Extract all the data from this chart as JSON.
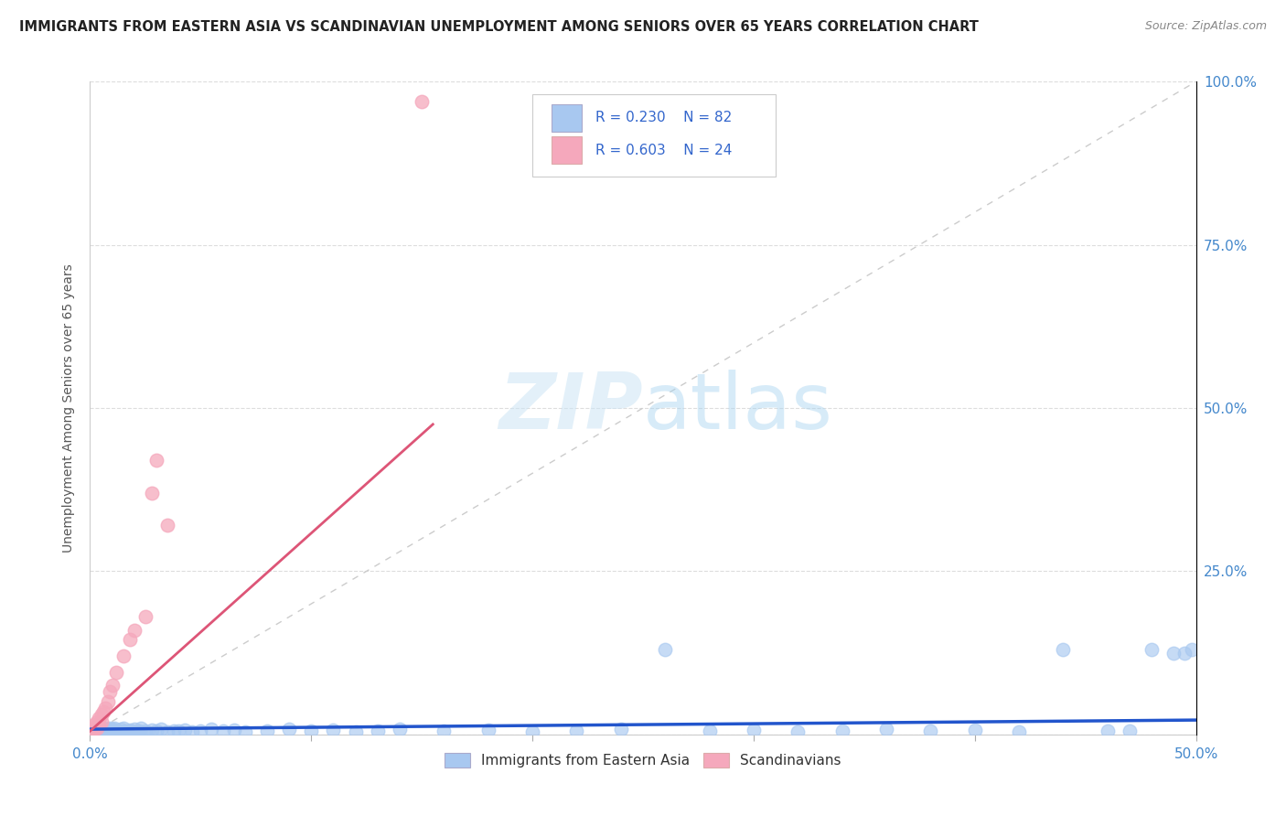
{
  "title": "IMMIGRANTS FROM EASTERN ASIA VS SCANDINAVIAN UNEMPLOYMENT AMONG SENIORS OVER 65 YEARS CORRELATION CHART",
  "source": "Source: ZipAtlas.com",
  "legend_label1": "Immigrants from Eastern Asia",
  "legend_label2": "Scandinavians",
  "legend_r1": "R = 0.230",
  "legend_n1": "N = 82",
  "legend_r2": "R = 0.603",
  "legend_n2": "N = 24",
  "ylabel_label": "Unemployment Among Seniors over 65 years",
  "blue_color": "#a8c8f0",
  "pink_color": "#f5a8bc",
  "blue_line_color": "#2255cc",
  "pink_line_color": "#dd5577",
  "ref_line_color": "#cccccc",
  "background_color": "#ffffff",
  "xlim": [
    0,
    0.5
  ],
  "ylim": [
    0,
    1.0
  ],
  "blue_x": [
    0.001,
    0.002,
    0.002,
    0.003,
    0.003,
    0.003,
    0.004,
    0.004,
    0.004,
    0.005,
    0.005,
    0.005,
    0.006,
    0.006,
    0.007,
    0.007,
    0.007,
    0.008,
    0.008,
    0.009,
    0.009,
    0.01,
    0.01,
    0.011,
    0.011,
    0.012,
    0.012,
    0.013,
    0.014,
    0.015,
    0.015,
    0.016,
    0.017,
    0.018,
    0.019,
    0.02,
    0.021,
    0.022,
    0.023,
    0.025,
    0.026,
    0.028,
    0.03,
    0.032,
    0.035,
    0.038,
    0.04,
    0.043,
    0.046,
    0.05,
    0.055,
    0.06,
    0.065,
    0.07,
    0.08,
    0.09,
    0.1,
    0.11,
    0.12,
    0.13,
    0.14,
    0.16,
    0.18,
    0.2,
    0.22,
    0.24,
    0.26,
    0.28,
    0.3,
    0.32,
    0.34,
    0.36,
    0.38,
    0.4,
    0.42,
    0.44,
    0.46,
    0.47,
    0.48,
    0.49,
    0.495,
    0.498
  ],
  "blue_y": [
    0.005,
    0.008,
    0.003,
    0.01,
    0.005,
    0.012,
    0.006,
    0.002,
    0.008,
    0.004,
    0.007,
    0.01,
    0.003,
    0.008,
    0.005,
    0.009,
    0.003,
    0.007,
    0.004,
    0.006,
    0.01,
    0.004,
    0.008,
    0.005,
    0.009,
    0.003,
    0.007,
    0.005,
    0.008,
    0.004,
    0.009,
    0.006,
    0.004,
    0.007,
    0.005,
    0.008,
    0.004,
    0.006,
    0.009,
    0.005,
    0.003,
    0.007,
    0.005,
    0.008,
    0.004,
    0.006,
    0.005,
    0.007,
    0.004,
    0.006,
    0.008,
    0.005,
    0.007,
    0.004,
    0.006,
    0.008,
    0.005,
    0.007,
    0.004,
    0.006,
    0.008,
    0.005,
    0.007,
    0.004,
    0.006,
    0.008,
    0.13,
    0.005,
    0.007,
    0.004,
    0.006,
    0.008,
    0.005,
    0.007,
    0.004,
    0.13,
    0.006,
    0.005,
    0.13,
    0.125,
    0.125,
    0.13
  ],
  "pink_x": [
    0.001,
    0.001,
    0.002,
    0.002,
    0.003,
    0.003,
    0.004,
    0.004,
    0.005,
    0.005,
    0.006,
    0.007,
    0.008,
    0.009,
    0.01,
    0.012,
    0.015,
    0.018,
    0.02,
    0.025,
    0.028,
    0.03,
    0.035,
    0.15
  ],
  "pink_y": [
    0.005,
    0.01,
    0.008,
    0.015,
    0.01,
    0.02,
    0.015,
    0.025,
    0.02,
    0.03,
    0.035,
    0.04,
    0.05,
    0.065,
    0.075,
    0.095,
    0.12,
    0.145,
    0.16,
    0.18,
    0.37,
    0.42,
    0.32,
    0.97
  ],
  "blue_trend_x": [
    0.0,
    0.5
  ],
  "blue_trend_y": [
    0.008,
    0.022
  ],
  "pink_trend_x": [
    0.0,
    0.155
  ],
  "pink_trend_y": [
    0.005,
    0.475
  ]
}
